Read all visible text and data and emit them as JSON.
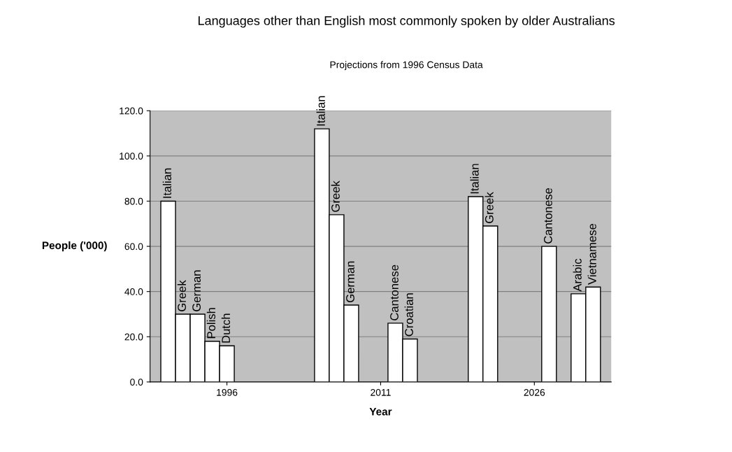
{
  "chart_data": {
    "type": "bar",
    "title": "Languages other than English most commonly spoken by older Australians",
    "subtitle": "Projections from 1996 Census Data",
    "xlabel": "Year",
    "ylabel": "People ('000)",
    "categories": [
      "1996",
      "2011",
      "2026"
    ],
    "series": [
      {
        "name": "Italian",
        "color": "#ffffff",
        "values": [
          80,
          112,
          82
        ]
      },
      {
        "name": "Greek",
        "color": "#ffffff",
        "values": [
          30,
          74,
          69
        ]
      },
      {
        "name": "German",
        "color": "#ffffff",
        "values": [
          30,
          34,
          null
        ]
      },
      {
        "name": "Polish",
        "color": "#ffffff",
        "values": [
          18,
          null,
          null
        ]
      },
      {
        "name": "Dutch",
        "color": "#ffffff",
        "values": [
          16,
          null,
          null
        ]
      },
      {
        "name": "Cantonese",
        "color": "#ffffff",
        "values": [
          null,
          26,
          60
        ]
      },
      {
        "name": "Croatian",
        "color": "#ffffff",
        "values": [
          null,
          19,
          null
        ]
      },
      {
        "name": "Arabic",
        "color": "#ffffff",
        "values": [
          null,
          null,
          39
        ]
      },
      {
        "name": "Vietnamese",
        "color": "#ffffff",
        "values": [
          null,
          null,
          42
        ]
      }
    ],
    "ylim": [
      0,
      120
    ],
    "yticks": [
      {
        "value": 0,
        "label": "0.0"
      },
      {
        "value": 20,
        "label": "20.0"
      },
      {
        "value": 40,
        "label": "40.0"
      },
      {
        "value": 60,
        "label": "60.0"
      },
      {
        "value": 80,
        "label": "80.0"
      },
      {
        "value": 100,
        "label": "100.0"
      },
      {
        "value": 120,
        "label": "120.0"
      }
    ],
    "grid": "y",
    "legend": false
  }
}
